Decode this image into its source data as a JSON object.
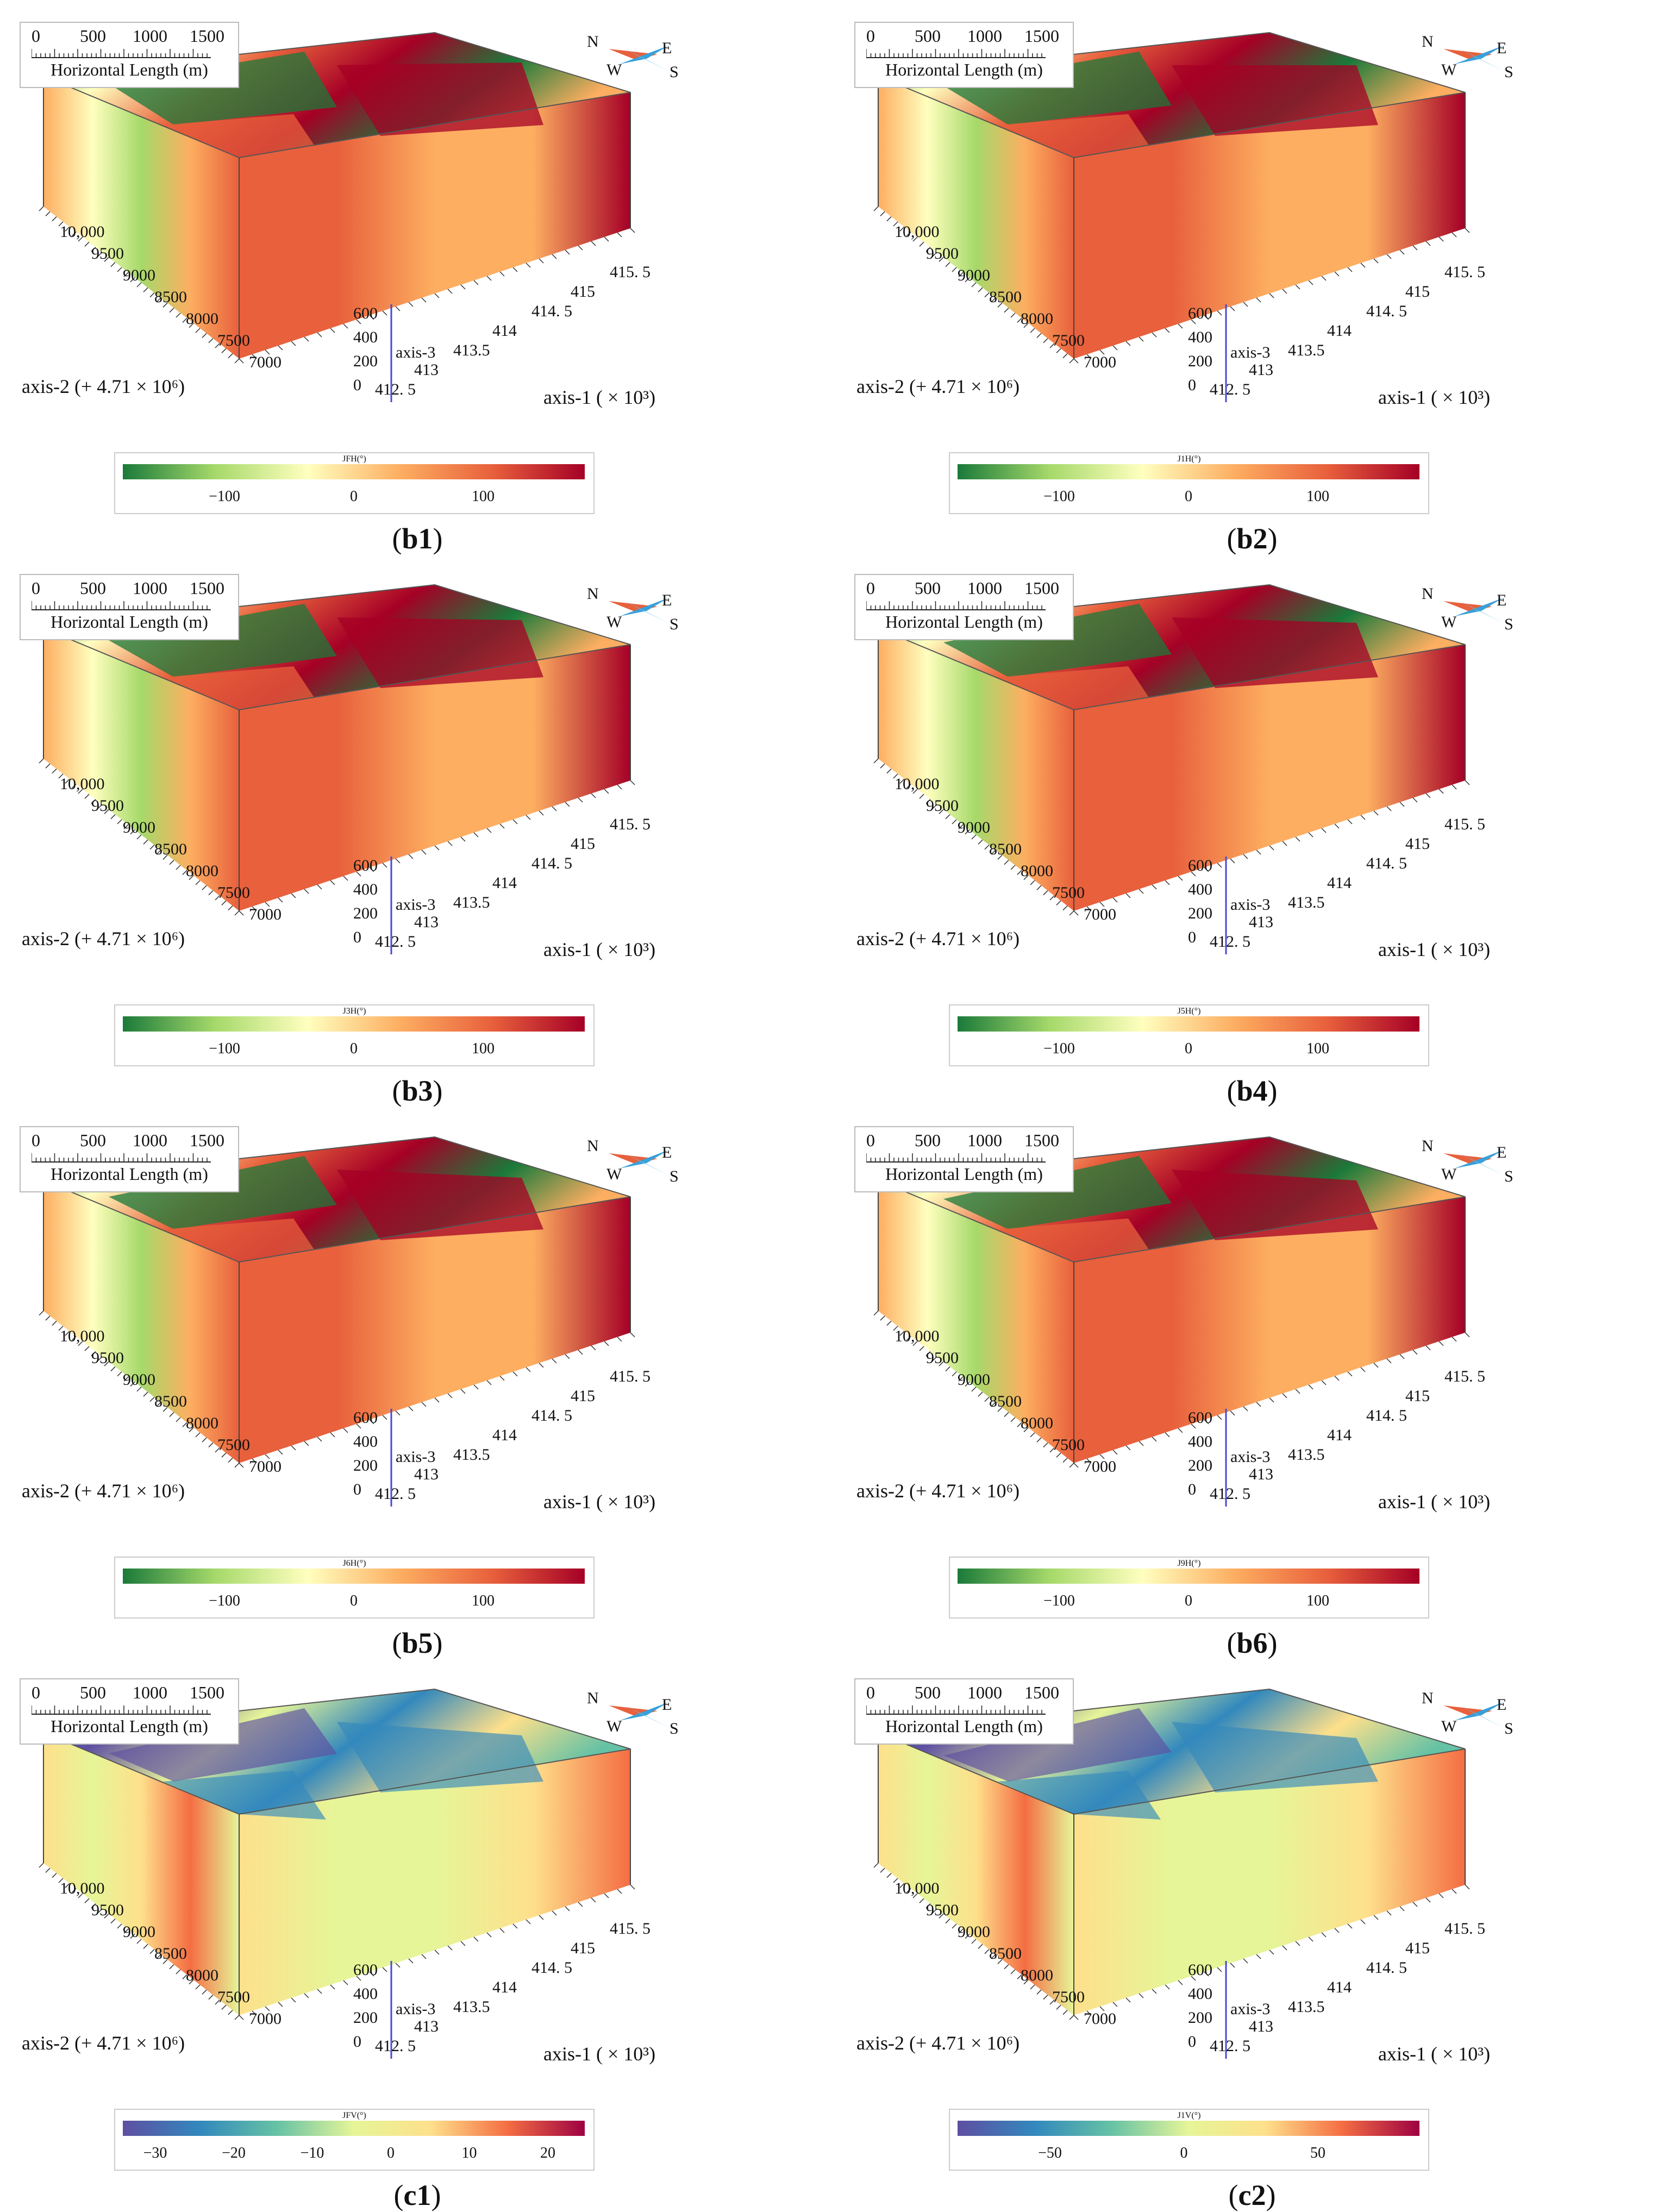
{
  "panels": [
    {
      "id": "b1",
      "letter": "b",
      "num": "1",
      "cb_title": "JFH(°)",
      "cb_ticks": [
        "−100",
        "0",
        "100"
      ],
      "palette": "diverging",
      "top_variant": 1
    },
    {
      "id": "b2",
      "letter": "b",
      "num": "2",
      "cb_title": "J1H(°)",
      "cb_ticks": [
        "−100",
        "0",
        "100"
      ],
      "palette": "diverging",
      "top_variant": 2
    },
    {
      "id": "b3",
      "letter": "b",
      "num": "3",
      "cb_title": "J3H(°)",
      "cb_ticks": [
        "−100",
        "0",
        "100"
      ],
      "palette": "diverging",
      "top_variant": 3
    },
    {
      "id": "b4",
      "letter": "b",
      "num": "4",
      "cb_title": "J5H(°)",
      "cb_ticks": [
        "−100",
        "0",
        "100"
      ],
      "palette": "diverging",
      "top_variant": 4
    },
    {
      "id": "b5",
      "letter": "b",
      "num": "5",
      "cb_title": "J6H(°)",
      "cb_ticks": [
        "−100",
        "0",
        "100"
      ],
      "palette": "diverging",
      "top_variant": 5
    },
    {
      "id": "b6",
      "letter": "b",
      "num": "6",
      "cb_title": "J9H(°)",
      "cb_ticks": [
        "−100",
        "0",
        "100"
      ],
      "palette": "diverging",
      "top_variant": 6
    },
    {
      "id": "c1",
      "letter": "c",
      "num": "1",
      "cb_title": "JFV(°)",
      "cb_ticks": [
        "−30",
        "−20",
        "−10",
        "0",
        "10",
        "20"
      ],
      "palette": "spectral",
      "top_variant": 7
    },
    {
      "id": "c2",
      "letter": "c",
      "num": "2",
      "cb_title": "J1V(°)",
      "cb_ticks": [
        "−50",
        "0",
        "50"
      ],
      "palette": "spectral",
      "top_variant": 8
    }
  ],
  "common": {
    "scale_numbers": [
      "0",
      "500",
      "1000",
      "1500"
    ],
    "scale_caption": "Horizontal Length (m)",
    "compass": {
      "n": "N",
      "e": "E",
      "w": "W",
      "s": "S"
    },
    "axis2_label": "axis-2 (+ 4.71 × 10⁶)",
    "axis1_label": "axis-1 ( × 10³)",
    "axis3_label": "axis-3",
    "axis2_ticks": [
      "10,000",
      "9500",
      "9000",
      "8500",
      "8000",
      "7500",
      "7000"
    ],
    "axis1_ticks": [
      "412. 5",
      "413",
      "413.5",
      "414",
      "414. 5",
      "415",
      "415. 5"
    ],
    "axis3_ticks": [
      "600",
      "400",
      "200",
      "0"
    ]
  },
  "colors": {
    "diverging": [
      "#1a7a3a",
      "#a6d96a",
      "#ffffbf",
      "#fdae61",
      "#e8603c",
      "#a50026"
    ],
    "spectral": [
      "#5e4fa2",
      "#3288bd",
      "#66c2a5",
      "#e6f598",
      "#fee08b",
      "#f46d43",
      "#9e0142"
    ]
  }
}
